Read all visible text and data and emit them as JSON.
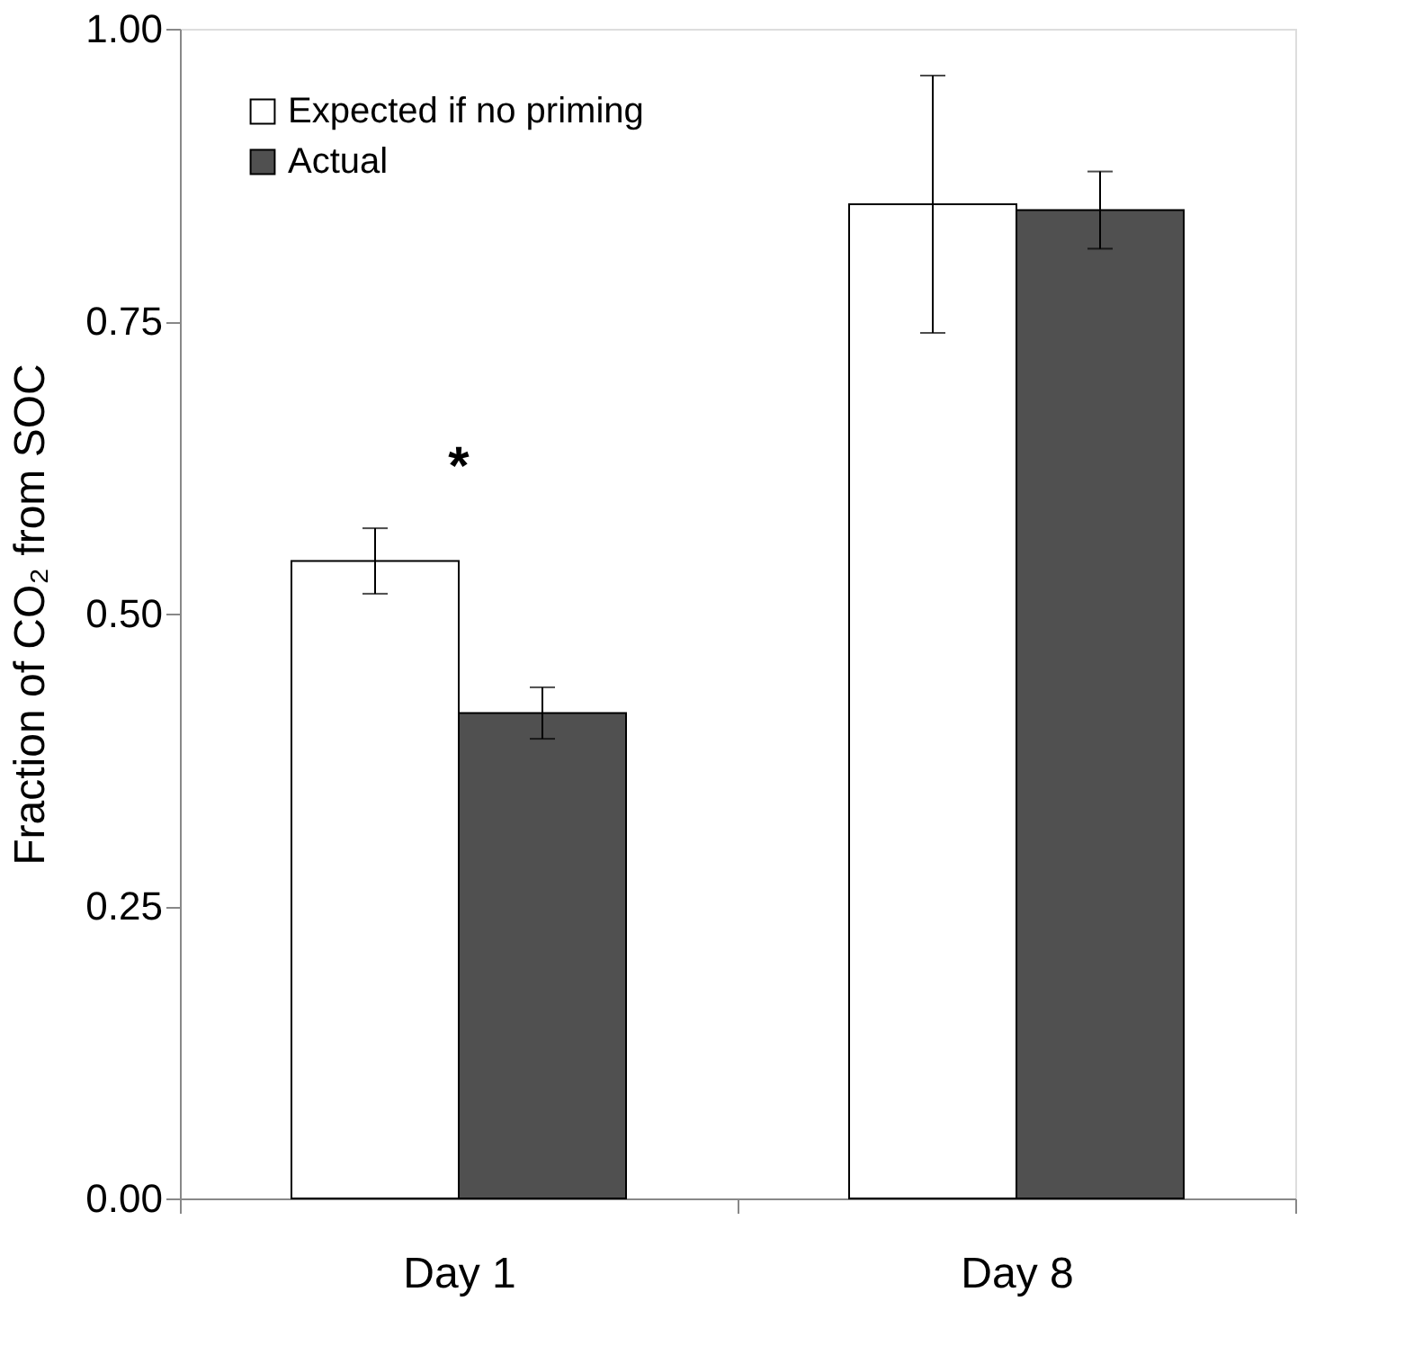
{
  "chart_data": {
    "type": "bar",
    "ylabel": "Fraction of CO₂ from SOC",
    "categories": [
      "Day 1",
      "Day 8"
    ],
    "series": [
      {
        "name": "Expected if no priming",
        "color": "#ffffff",
        "values": [
          0.545,
          0.85
        ],
        "errors": [
          0.028,
          0.11
        ]
      },
      {
        "name": "Actual",
        "color": "#505050",
        "values": [
          0.415,
          0.845
        ],
        "errors": [
          0.022,
          0.033
        ]
      }
    ],
    "ylim": [
      0,
      1
    ],
    "yticks": [
      {
        "value": 0,
        "label": "0.00"
      },
      {
        "value": 0.25,
        "label": "0.25"
      },
      {
        "value": 0.5,
        "label": "0.50"
      },
      {
        "value": 0.75,
        "label": "0.75"
      },
      {
        "value": 1,
        "label": "1.00"
      }
    ],
    "grid": false,
    "legend": "top left",
    "annotations": [
      "*"
    ]
  }
}
